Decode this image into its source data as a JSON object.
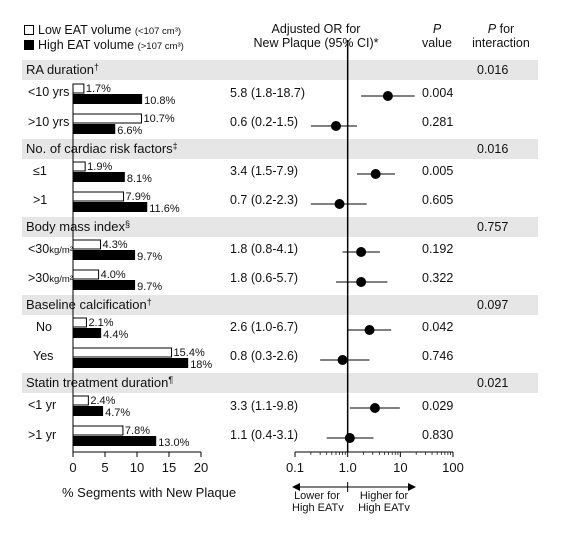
{
  "legend": {
    "low": {
      "label": "Low EAT volume",
      "threshold": "(<107 cm³)"
    },
    "high": {
      "label": "High EAT volume",
      "threshold": "(>107 cm³)"
    }
  },
  "headers": {
    "or_line1": "Adjusted OR for",
    "or_line2": "New Plaque (95% CI)*",
    "p_line1": "P",
    "p_line2": "value",
    "pint_line1": "P for",
    "pint_line2": "interaction"
  },
  "groups": [
    {
      "title": "RA duration",
      "mark": "†",
      "p_interaction": "0.016"
    },
    {
      "title": "No. of cardiac risk factors",
      "mark": "‡",
      "p_interaction": "0.016"
    },
    {
      "title": "Body mass index",
      "mark": "§",
      "p_interaction": "0.757"
    },
    {
      "title": "Baseline calcification",
      "mark": "†",
      "p_interaction": "0.097"
    },
    {
      "title": "Statin treatment duration",
      "mark": "¶",
      "p_interaction": "0.021"
    }
  ],
  "rows": [
    {
      "label": "<10 yrs",
      "unit": "",
      "or_text": "5.8 (1.8-18.7)",
      "p": "0.004"
    },
    {
      "label": ">10 yrs",
      "unit": "",
      "or_text": "0.6 (0.2-1.5)",
      "p": "0.281"
    },
    {
      "label": "≤1",
      "unit": "",
      "or_text": "3.4 (1.5-7.9)",
      "p": "0.005"
    },
    {
      "label": ">1",
      "unit": "",
      "or_text": "0.7 (0.2-2.3)",
      "p": "0.605"
    },
    {
      "label": "<30",
      "unit": "kg/m²",
      "or_text": "1.8 (0.8-4.1)",
      "p": "0.192"
    },
    {
      "label": ">30",
      "unit": "kg/m²",
      "or_text": "1.8 (0.6-5.7)",
      "p": "0.322"
    },
    {
      "label": "No",
      "unit": "",
      "or_text": "2.6 (1.0-6.7)",
      "p": "0.042"
    },
    {
      "label": "Yes",
      "unit": "",
      "or_text": "0.8 (0.3-2.6)",
      "p": "0.746"
    },
    {
      "label": "<1 yr",
      "unit": "",
      "or_text": "3.3 (1.1-9.8)",
      "p": "0.029"
    },
    {
      "label": ">1 yr",
      "unit": "",
      "or_text": "1.1 (0.4-3.1)",
      "p": "0.830"
    }
  ],
  "chart_data": [
    {
      "type": "bar",
      "xlabel": "% Segments with New Plaque",
      "xlim": [
        0,
        20
      ],
      "xticks": [
        "0",
        "5",
        "10",
        "15",
        "20"
      ],
      "categories": [
        "<10 yrs",
        ">10 yrs",
        "≤1",
        ">1",
        "<30",
        ">30",
        "No",
        "Yes",
        "<1 yr",
        ">1 yr"
      ],
      "series": [
        {
          "name": "Low EAT volume",
          "color": "#ffffff",
          "values": [
            1.7,
            10.7,
            1.9,
            7.9,
            4.3,
            4.0,
            2.1,
            15.4,
            2.4,
            7.8
          ],
          "labels": [
            "1.7%",
            "10.7%",
            "1.9%",
            "7.9%",
            "4.3%",
            "4.0%",
            "2.1%",
            "15.4%",
            "2.4%",
            "7.8%"
          ]
        },
        {
          "name": "High EAT volume",
          "color": "#000000",
          "values": [
            10.8,
            6.6,
            8.1,
            11.6,
            9.7,
            9.7,
            4.4,
            18,
            4.7,
            13.0
          ],
          "labels": [
            "10.8%",
            "6.6%",
            "8.1%",
            "11.6%",
            "9.7%",
            "9.7%",
            "4.4%",
            "18%",
            "4.7%",
            "13.0%"
          ]
        }
      ]
    },
    {
      "type": "scatter",
      "subtype": "forest",
      "xscale": "log",
      "xlim": [
        0.1,
        100
      ],
      "xticks": [
        "0.1",
        "1.0",
        "10",
        "100"
      ],
      "reference_line": 1.0,
      "categories": [
        "<10 yrs",
        ">10 yrs",
        "≤1",
        ">1",
        "<30",
        ">30",
        "No",
        "Yes",
        "<1 yr",
        ">1 yr"
      ],
      "or": [
        5.8,
        0.6,
        3.4,
        0.7,
        1.8,
        1.8,
        2.6,
        0.8,
        3.3,
        1.1
      ],
      "ci_low": [
        1.8,
        0.2,
        1.5,
        0.2,
        0.8,
        0.6,
        1.0,
        0.3,
        1.1,
        0.4
      ],
      "ci_high": [
        18.7,
        1.5,
        7.9,
        2.3,
        4.1,
        5.7,
        6.7,
        2.6,
        9.8,
        3.1
      ],
      "annotation_left": [
        "Lower for",
        "High EATv"
      ],
      "annotation_right": [
        "Higher for",
        "High EATv"
      ]
    }
  ]
}
